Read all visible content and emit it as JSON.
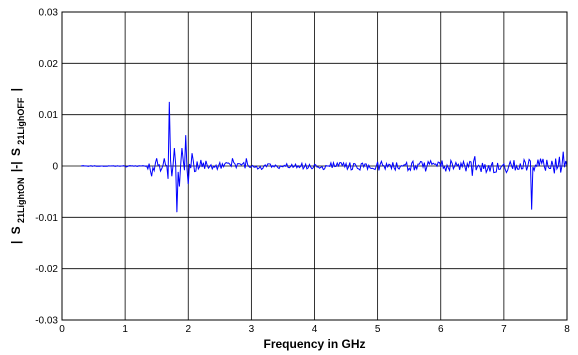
{
  "chart_data": {
    "type": "line",
    "title": "",
    "xlabel": "Frequency in GHz",
    "ylabel": {
      "bar_left": "|",
      "s_left": "S",
      "sub_left": "21LightON",
      "middle": "|-|",
      "s_right": "S",
      "sub_right": "21LighOFF",
      "bar_right": "|"
    },
    "xlim": [
      0,
      8
    ],
    "ylim": [
      -0.03,
      0.03
    ],
    "x_ticks": [
      0,
      1,
      2,
      3,
      4,
      5,
      6,
      7,
      8
    ],
    "x_tick_labels": [
      "0",
      "1",
      "2",
      "3",
      "4",
      "5",
      "6",
      "7",
      "8"
    ],
    "y_ticks": [
      -0.03,
      -0.02,
      -0.01,
      0,
      0.01,
      0.02,
      0.03
    ],
    "y_tick_labels": [
      "-0.03",
      "-0.02",
      "-0.01",
      "0",
      "0.01",
      "0.02",
      "0.03"
    ],
    "grid": true,
    "line_color": "#0000ff",
    "series": [
      {
        "x_start": 0.3,
        "x_end": 8.0,
        "x_step": 0.02,
        "features": [
          {
            "x": 1.42,
            "y": -0.002
          },
          {
            "x": 1.5,
            "y": 0.0015
          },
          {
            "x": 1.56,
            "y": -0.001
          },
          {
            "x": 1.62,
            "y": 0.0015
          },
          {
            "x": 1.68,
            "y": -0.0025
          },
          {
            "x": 1.7,
            "y": 0.0125
          },
          {
            "x": 1.74,
            "y": -0.002
          },
          {
            "x": 1.78,
            "y": 0.0035
          },
          {
            "x": 1.82,
            "y": -0.009
          },
          {
            "x": 1.86,
            "y": -0.004
          },
          {
            "x": 1.9,
            "y": 0.0035
          },
          {
            "x": 1.96,
            "y": 0.006
          },
          {
            "x": 2.0,
            "y": -0.0035
          },
          {
            "x": 2.06,
            "y": 0.0025
          },
          {
            "x": 2.12,
            "y": -0.001
          },
          {
            "x": 2.28,
            "y": 0.001
          },
          {
            "x": 2.7,
            "y": 0.0015
          },
          {
            "x": 2.92,
            "y": 0.0015
          },
          {
            "x": 7.44,
            "y": -0.0085
          },
          {
            "x": 7.88,
            "y": 0.0018
          }
        ]
      }
    ]
  }
}
